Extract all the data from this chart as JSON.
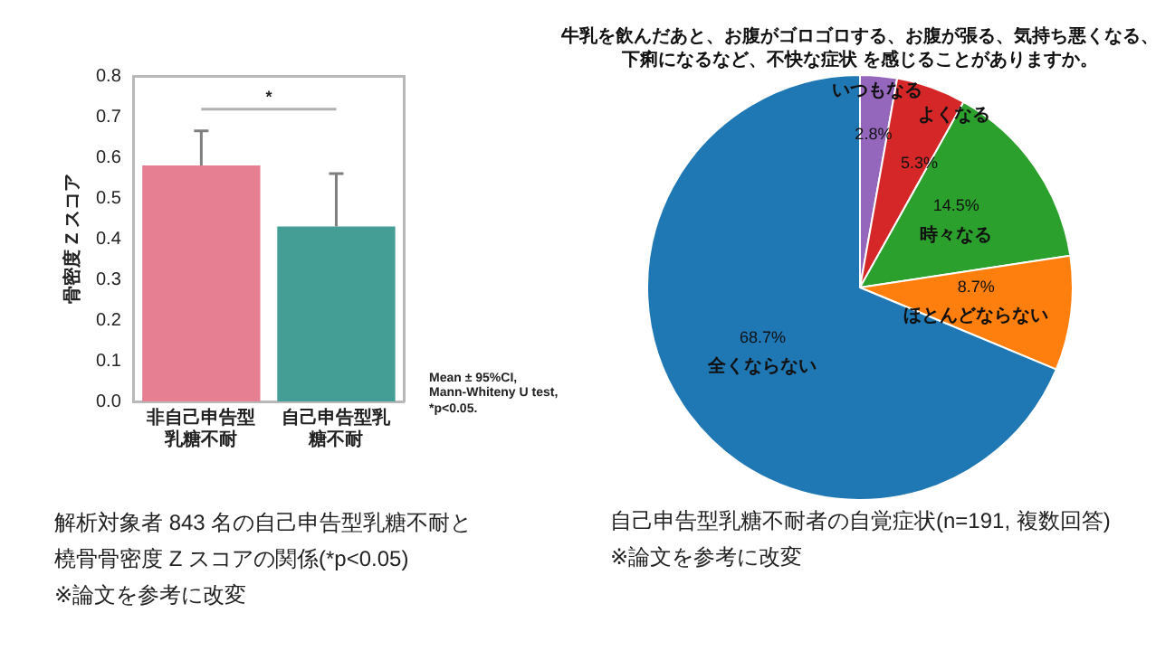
{
  "chart_data": [
    {
      "type": "bar",
      "ylabel": "骨密度 Z スコア",
      "categories": [
        "非自己申告型乳糖不耐",
        "自己申告型乳糖不耐"
      ],
      "values": [
        0.58,
        0.43
      ],
      "colors": [
        "#e57f91",
        "#459e96"
      ],
      "errors": [
        [
          0.58,
          0.665
        ],
        [
          0.43,
          0.56
        ]
      ],
      "ylim": [
        0,
        0.8
      ],
      "yticks": [
        {
          "value": 0,
          "label": "0.0"
        },
        0.1,
        0.2,
        0.3,
        0.4,
        0.5,
        0.6,
        0.7,
        0.8
      ],
      "grid": false,
      "legend": false,
      "annotations": [
        "*",
        "Mean ± 95%CI,\nMann-Whiteny U test,\n*p<0.05.",
        "解析対象者 843 名の自己申告型乳糖不耐と橈骨骨密度 Z スコアの関係(*p<0.05)",
        "※論文を参考に改変"
      ]
    },
    {
      "type": "pie",
      "title": "牛乳を飲んだあと、お腹がゴロゴロする、お腹が張る、気持ち悪くなる、下痢になるなど、不快な症状 を感じることがありますか。",
      "categories": [
        "いつもなる",
        "よくなる",
        "時々なる",
        "ほとんどならない",
        "全くならない"
      ],
      "values": [
        2.8,
        5.3,
        14.5,
        8.7,
        68.7
      ],
      "colors": [
        "#9467bd",
        "#d62728",
        "#2ca02c",
        "#ff7f0e",
        "#1f77b4"
      ],
      "value_labels": [
        "2.8%",
        "5.3%",
        "14.5%",
        "8.7%",
        "68.7%"
      ],
      "legend": false,
      "annotations": [
        "自己申告型乳糖不耐者の自覚症状(n=191, 複数回答)",
        "※論文を参考に改変"
      ]
    }
  ]
}
